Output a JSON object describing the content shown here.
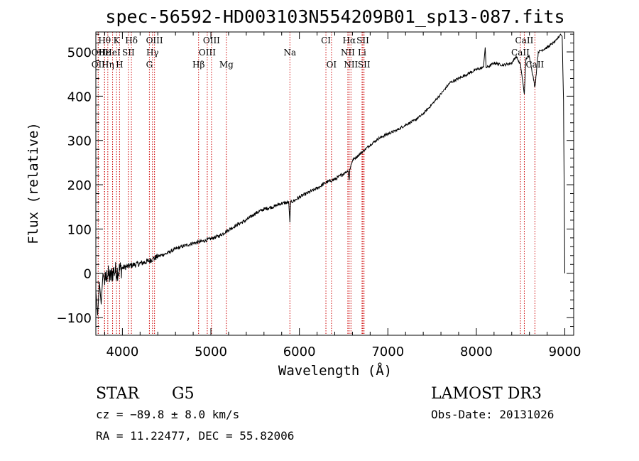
{
  "chart_data": {
    "type": "line",
    "title": "spec-56592-HD003103N554209B01_sp13-087.fits",
    "xlabel": "Wavelength (Å)",
    "ylabel": "Flux (relative)",
    "xlim": [
      3700,
      9100
    ],
    "ylim": [
      -140,
      545
    ],
    "xticks": [
      4000,
      5000,
      6000,
      7000,
      8000,
      9000
    ],
    "yticks": [
      -100,
      0,
      100,
      200,
      300,
      400,
      500
    ],
    "series": [
      {
        "name": "flux",
        "x": [
          3700,
          3720,
          3740,
          3760,
          3780,
          3800,
          3830,
          3860,
          3900,
          3950,
          4000,
          4100,
          4200,
          4300,
          4400,
          4500,
          4600,
          4700,
          4800,
          4850,
          4900,
          5000,
          5100,
          5200,
          5300,
          5400,
          5500,
          5600,
          5700,
          5800,
          5880,
          5893,
          5900,
          5950,
          6000,
          6100,
          6200,
          6300,
          6400,
          6500,
          6550,
          6563,
          6570,
          6600,
          6700,
          6800,
          6900,
          7000,
          7100,
          7200,
          7300,
          7400,
          7500,
          7600,
          7700,
          7800,
          7900,
          8000,
          8080,
          8100,
          8110,
          8150,
          8200,
          8300,
          8400,
          8450,
          8500,
          8542,
          8560,
          8600,
          8662,
          8700,
          8800,
          8900,
          8950,
          8970,
          8985,
          9000
        ],
        "y": [
          -40,
          -95,
          -20,
          -70,
          0,
          -20,
          0,
          -10,
          5,
          5,
          12,
          18,
          22,
          28,
          38,
          45,
          55,
          62,
          68,
          70,
          72,
          78,
          85,
          98,
          110,
          120,
          135,
          145,
          150,
          158,
          160,
          115,
          160,
          165,
          172,
          182,
          192,
          205,
          212,
          225,
          232,
          210,
          235,
          255,
          272,
          290,
          305,
          315,
          323,
          335,
          345,
          360,
          382,
          405,
          430,
          440,
          450,
          460,
          465,
          510,
          465,
          468,
          475,
          470,
          475,
          490,
          470,
          405,
          485,
          490,
          420,
          500,
          510,
          525,
          540,
          535,
          390,
          0
        ]
      }
    ],
    "spectral_lines": [
      {
        "label": "Hθ",
        "x": 3798,
        "row": 1
      },
      {
        "label": "K",
        "x": 3934,
        "row": 1
      },
      {
        "label": "Hδ",
        "x": 4102,
        "row": 1
      },
      {
        "label": "OIII",
        "x": 4363,
        "row": 1
      },
      {
        "label": "OIII",
        "x": 5007,
        "row": 1
      },
      {
        "label": "CI",
        "x": 6300,
        "row": 1
      },
      {
        "label": "Hα",
        "x": 6563,
        "row": 1
      },
      {
        "label": "SII",
        "x": 6717,
        "row": 1
      },
      {
        "label": "CaII",
        "x": 8542,
        "row": 1
      },
      {
        "label": "OII",
        "x": 3727,
        "row": 2
      },
      {
        "label": "Hε",
        "x": 3799,
        "row": 2
      },
      {
        "label": "HeI",
        "x": 3889,
        "row": 2
      },
      {
        "label": "SII",
        "x": 4068,
        "row": 2
      },
      {
        "label": "Hγ",
        "x": 4340,
        "row": 2
      },
      {
        "label": "OIII",
        "x": 4959,
        "row": 2
      },
      {
        "label": "Na",
        "x": 5893,
        "row": 2
      },
      {
        "label": "NII",
        "x": 6548,
        "row": 2
      },
      {
        "label": "Li",
        "x": 6708,
        "row": 2
      },
      {
        "label": "CaII",
        "x": 8498,
        "row": 2
      },
      {
        "label": "OII",
        "x": 3727,
        "row": 3
      },
      {
        "label": "Hη",
        "x": 3835,
        "row": 3
      },
      {
        "label": "H",
        "x": 3968,
        "row": 3
      },
      {
        "label": "G",
        "x": 4305,
        "row": 3
      },
      {
        "label": "Hβ",
        "x": 4861,
        "row": 3
      },
      {
        "label": "Mg",
        "x": 5175,
        "row": 3
      },
      {
        "label": "OI",
        "x": 6363,
        "row": 3
      },
      {
        "label": "NII",
        "x": 6583,
        "row": 3
      },
      {
        "label": "SII",
        "x": 6731,
        "row": 3
      },
      {
        "label": "CaII",
        "x": 8662,
        "row": 3
      }
    ],
    "line_marker_color": "#cc0000",
    "trace_color": "#000000"
  },
  "info": {
    "object_class": "STAR",
    "subclass": "G5",
    "survey": "LAMOST DR3",
    "cz": "cz = −89.8 ± 8.0 km/s",
    "obs_date": "Obs-Date: 20131026",
    "coords": "RA =  11.22477, DEC =  55.82006"
  }
}
